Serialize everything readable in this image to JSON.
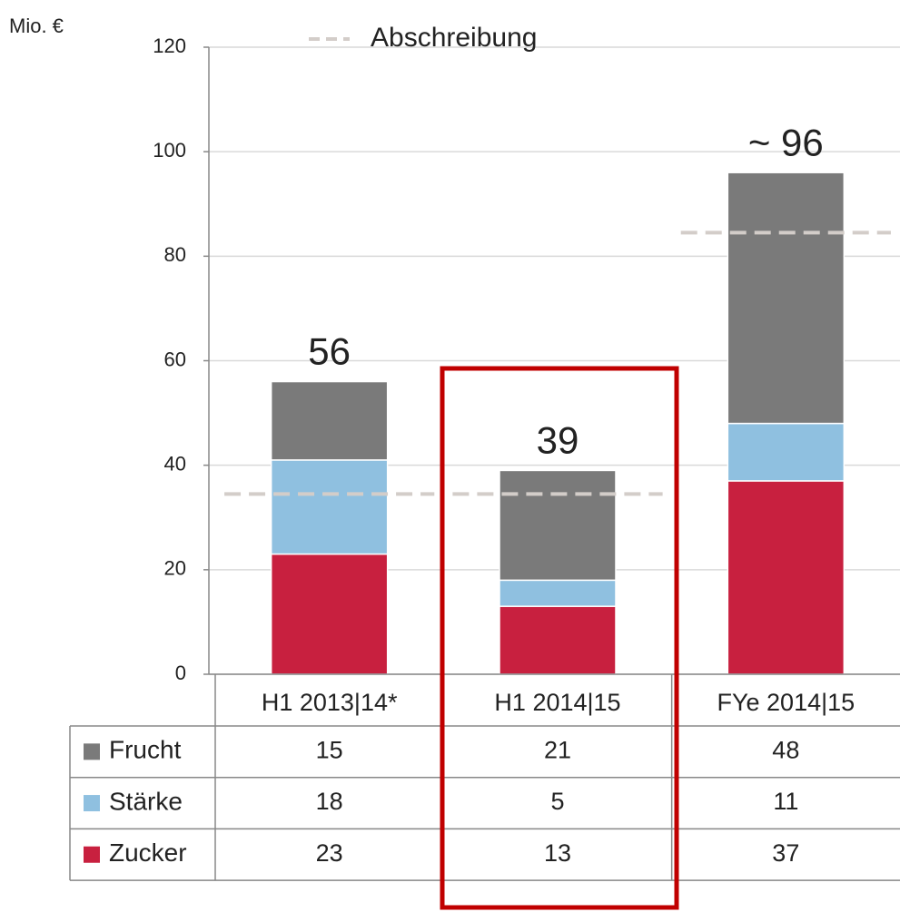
{
  "chart_data": {
    "type": "stacked_bar",
    "unit_label": "Mio. €",
    "categories": [
      "H1 2013|14*",
      "H1 2014|15",
      "FYe 2014|15"
    ],
    "series": [
      {
        "name": "Zucker",
        "color": "#c8203f",
        "values": [
          23,
          13,
          37
        ]
      },
      {
        "name": "Stärke",
        "color": "#8fc0e0",
        "values": [
          18,
          5,
          11
        ]
      },
      {
        "name": "Frucht",
        "color": "#7a7a7a",
        "values": [
          15,
          21,
          48
        ]
      }
    ],
    "totals": [
      56,
      39,
      96
    ],
    "total_labels": [
      "56",
      "39",
      "~ 96"
    ],
    "depreciation": {
      "name": "Abschreibung",
      "color": "#d3cdc9",
      "values": [
        34.5,
        34.5,
        84.5
      ]
    },
    "ylim": [
      0,
      120
    ],
    "yticks": [
      0,
      20,
      40,
      60,
      80,
      100,
      120
    ],
    "grid": true
  }
}
